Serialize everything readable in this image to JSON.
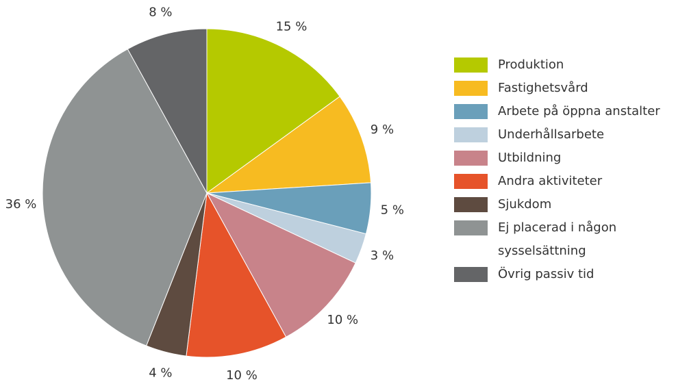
{
  "chart_data": {
    "type": "pie",
    "categories": [
      "Produktion",
      "Fastighetsvård",
      "Arbete på öppna anstalter",
      "Underhållsarbete",
      "Utbildning",
      "Andra aktiviteter",
      "Sjukdom",
      "Ej placerad i någon sysselsättning",
      "Övrig passiv tid"
    ],
    "values": [
      15,
      9,
      5,
      3,
      10,
      10,
      4,
      36,
      8
    ],
    "value_labels": [
      "15 %",
      "9 %",
      "5 %",
      "3 %",
      "10 %",
      "10 %",
      "4 %",
      "36 %",
      "8 %"
    ],
    "colors": [
      "#b5c900",
      "#f7bb21",
      "#6a9fba",
      "#bed0de",
      "#c8838a",
      "#e6532a",
      "#5e4b40",
      "#8f9393",
      "#646567"
    ]
  }
}
